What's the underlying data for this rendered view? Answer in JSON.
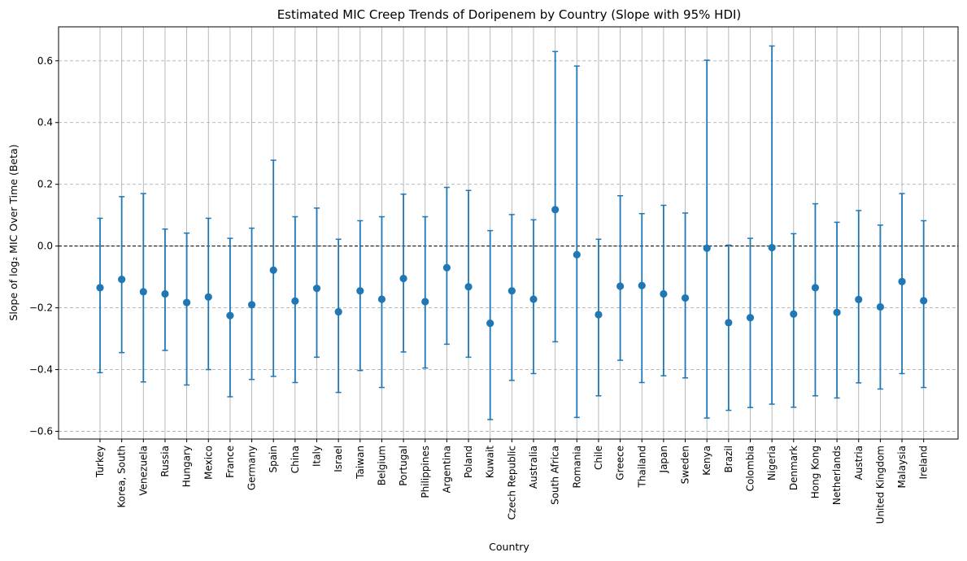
{
  "chart_data": {
    "type": "errorbar",
    "title": "Estimated MIC Creep Trends of Doripenem by Country (Slope with 95% HDI)",
    "xlabel": "Country",
    "ylabel": "Slope of log₂ MIC Over Time (Beta)",
    "ylim": [
      -0.625,
      0.71
    ],
    "yticks": [
      -0.6,
      -0.4,
      -0.2,
      0.0,
      0.2,
      0.4,
      0.6
    ],
    "ytick_labels": [
      "−0.6",
      "−0.4",
      "−0.2",
      "0.0",
      "0.2",
      "0.4",
      "0.6"
    ],
    "reference_line": 0.0,
    "grid": true,
    "color": "#1f77b4",
    "categories": [
      "Turkey",
      "Korea, South",
      "Venezuela",
      "Russia",
      "Hungary",
      "Mexico",
      "France",
      "Germany",
      "Spain",
      "China",
      "Italy",
      "Israel",
      "Taiwan",
      "Belgium",
      "Portugal",
      "Philippines",
      "Argentina",
      "Poland",
      "Kuwait",
      "Czech Republic",
      "Australia",
      "South Africa",
      "Romania",
      "Chile",
      "Greece",
      "Thailand",
      "Japan",
      "Sweden",
      "Kenya",
      "Brazil",
      "Colombia",
      "Nigeria",
      "Denmark",
      "Hong Kong",
      "Netherlands",
      "Austria",
      "United Kingdom",
      "Malaysia",
      "Ireland"
    ],
    "values": [
      -0.135,
      -0.108,
      -0.148,
      -0.155,
      -0.183,
      -0.165,
      -0.225,
      -0.19,
      -0.078,
      -0.178,
      -0.137,
      -0.213,
      -0.145,
      -0.172,
      -0.105,
      -0.18,
      -0.07,
      -0.132,
      -0.25,
      -0.145,
      -0.172,
      0.118,
      -0.028,
      -0.222,
      -0.13,
      -0.128,
      -0.155,
      -0.168,
      -0.007,
      -0.248,
      -0.232,
      -0.005,
      -0.22,
      -0.135,
      -0.215,
      -0.173,
      -0.197,
      -0.115,
      -0.177
    ],
    "lower": [
      -0.41,
      -0.345,
      -0.44,
      -0.338,
      -0.45,
      -0.4,
      -0.488,
      -0.432,
      -0.422,
      -0.442,
      -0.36,
      -0.474,
      -0.403,
      -0.458,
      -0.343,
      -0.395,
      -0.318,
      -0.36,
      -0.562,
      -0.435,
      -0.413,
      -0.31,
      -0.555,
      -0.485,
      -0.37,
      -0.442,
      -0.42,
      -0.427,
      -0.557,
      -0.532,
      -0.523,
      -0.512,
      -0.522,
      -0.485,
      -0.492,
      -0.443,
      -0.463,
      -0.413,
      -0.458
    ],
    "upper": [
      0.09,
      0.16,
      0.17,
      0.055,
      0.042,
      0.09,
      0.025,
      0.058,
      0.278,
      0.095,
      0.123,
      0.022,
      0.082,
      0.095,
      0.168,
      0.095,
      0.19,
      0.18,
      0.05,
      0.102,
      0.085,
      0.63,
      0.583,
      0.022,
      0.163,
      0.105,
      0.132,
      0.107,
      0.602,
      0.003,
      0.025,
      0.648,
      0.04,
      0.137,
      0.077,
      0.115,
      0.068,
      0.17,
      0.082
    ]
  }
}
